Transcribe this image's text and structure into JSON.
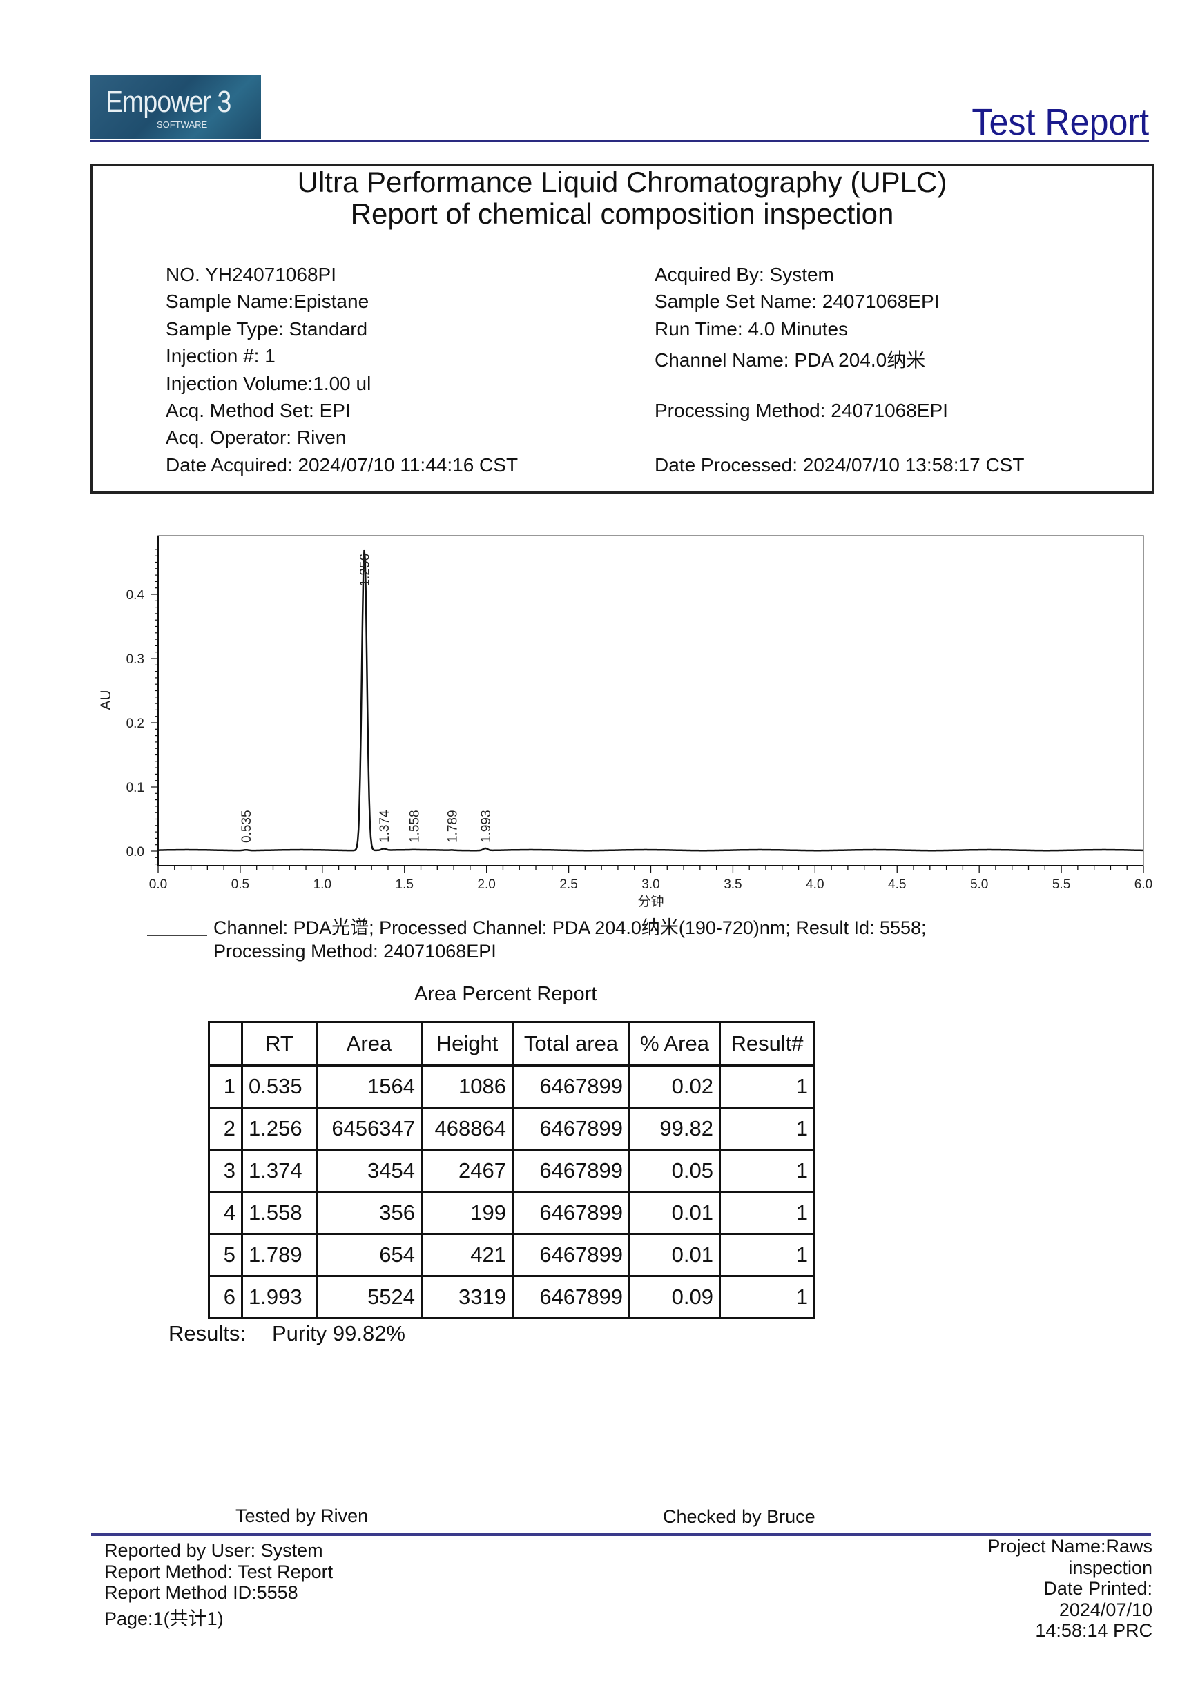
{
  "header": {
    "logo_text": "Empower 3",
    "logo_sub": "SOFTWARE",
    "report_title": "Test Report",
    "rule_color": "#2a2a80",
    "title_color": "#1a1a8c"
  },
  "info_box": {
    "title_line1": "Ultra Performance Liquid Chromatography (UPLC)",
    "title_line2": "Report of chemical composition inspection",
    "left": [
      "NO.    YH24071068PI",
      "Sample Name:Epistane",
      "Sample Type: Standard",
      "Injection #:  1",
      "Injection Volume:1.00 ul",
      "Acq. Method Set: EPI",
      "Acq. Operator:  Riven",
      "Date Acquired: 2024/07/10 11:44:16 CST"
    ],
    "right": [
      "Acquired By: System",
      "Sample Set Name: 24071068EPI",
      "Run Time: 4.0 Minutes",
      "Channel Name:  PDA 204.0纳米",
      "",
      "Processing Method: 24071068EPI",
      "",
      "Date Processed: 2024/07/10 13:58:17 CST"
    ]
  },
  "chart_data": {
    "type": "line",
    "xlabel": "分钟",
    "ylabel": "AU",
    "xlim": [
      0.0,
      6.0
    ],
    "ylim": [
      -0.022,
      0.48
    ],
    "x_ticks": [
      "0.0",
      "0.5",
      "1.0",
      "1.5",
      "2.0",
      "2.5",
      "3.0",
      "3.5",
      "4.0",
      "4.5",
      "5.0",
      "5.5",
      "6.0"
    ],
    "y_ticks": [
      "0.0",
      "0.1",
      "0.2",
      "0.3",
      "0.4"
    ],
    "grid": false,
    "peaks": [
      {
        "rt": 0.535,
        "label": "0.535",
        "height_au": 0.001086
      },
      {
        "rt": 1.256,
        "label": "1.256",
        "height_au": 0.468864
      },
      {
        "rt": 1.374,
        "label": "1.374",
        "height_au": 0.002467
      },
      {
        "rt": 1.558,
        "label": "1.558",
        "height_au": 0.000199
      },
      {
        "rt": 1.789,
        "label": "1.789",
        "height_au": 0.000421
      },
      {
        "rt": 1.993,
        "label": "1.993",
        "height_au": 0.003319
      }
    ],
    "legend": {
      "line1": "Channel: PDA光谱;   Processed Channel:  PDA 204.0纳米(190-720)nm;   Result Id:  5558;",
      "line2": "Processing Method:  24071068EPI",
      "placement": "bottom-left"
    }
  },
  "area_report": {
    "title": "Area Percent Report",
    "columns": [
      "",
      "RT",
      "Area",
      "Height",
      "Total area",
      "% Area",
      "Result#"
    ],
    "rows": [
      [
        "1",
        "0.535",
        "1564",
        "1086",
        "6467899",
        "0.02",
        "1"
      ],
      [
        "2",
        "1.256",
        "6456347",
        "468864",
        "6467899",
        "99.82",
        "1"
      ],
      [
        "3",
        "1.374",
        "3454",
        "2467",
        "6467899",
        "0.05",
        "1"
      ],
      [
        "4",
        "1.558",
        "356",
        "199",
        "6467899",
        "0.01",
        "1"
      ],
      [
        "5",
        "1.789",
        "654",
        "421",
        "6467899",
        "0.01",
        "1"
      ],
      [
        "6",
        "1.993",
        "5524",
        "3319",
        "6467899",
        "0.09",
        "1"
      ]
    ],
    "results_label": "Results:",
    "results_value": "Purity 99.82%"
  },
  "signatures": {
    "tested": "Tested  by  Riven",
    "checked": "Checked  by  Bruce"
  },
  "footer": {
    "left": [
      "Reported by User:  System",
      "Report Method:  Test Report",
      "Report Method ID:5558",
      "Page:1(共计1)"
    ],
    "right": [
      "Project Name:Raws",
      "inspection",
      "Date Printed:",
      "2024/07/10",
      "14:58:14 PRC"
    ]
  }
}
